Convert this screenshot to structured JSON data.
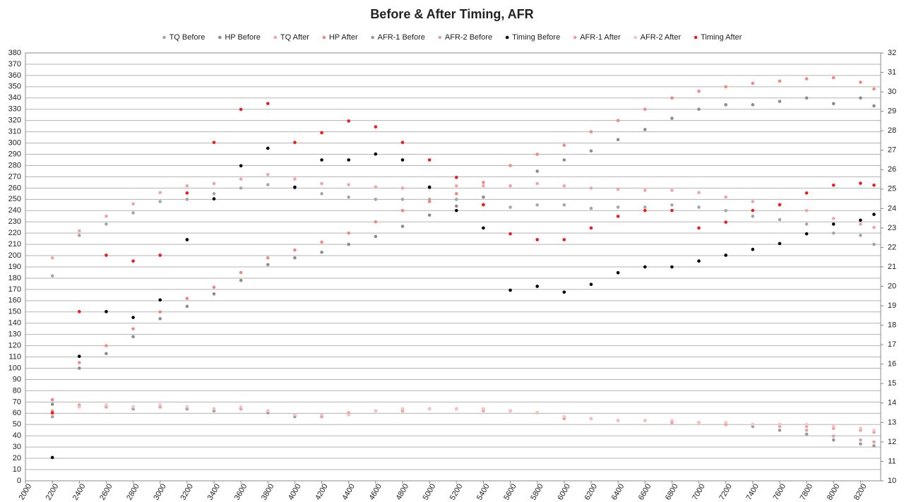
{
  "chart_data": {
    "type": "scatter",
    "title": "Before & After Timing, AFR",
    "x": [
      2200,
      2400,
      2600,
      2800,
      3000,
      3200,
      3400,
      3600,
      3800,
      4000,
      4200,
      4400,
      4600,
      4800,
      5000,
      5200,
      5400,
      5600,
      5800,
      6000,
      6200,
      6400,
      6600,
      6800,
      7000,
      7200,
      7400,
      7600,
      7800,
      8000,
      8200,
      8300
    ],
    "xlim": [
      2000,
      8350
    ],
    "xticks": [
      2000,
      2200,
      2400,
      2600,
      2800,
      3000,
      3200,
      3400,
      3600,
      3800,
      4000,
      4200,
      4400,
      4600,
      4800,
      5000,
      5200,
      5400,
      5600,
      5800,
      6000,
      6200,
      6400,
      6600,
      6800,
      7000,
      7200,
      7400,
      7600,
      7800,
      8000,
      8200
    ],
    "ylim": [
      0,
      380
    ],
    "yticks": [
      0,
      10,
      20,
      30,
      40,
      50,
      60,
      70,
      80,
      90,
      100,
      110,
      120,
      130,
      140,
      150,
      160,
      170,
      180,
      190,
      200,
      210,
      220,
      230,
      240,
      250,
      260,
      270,
      280,
      290,
      300,
      310,
      320,
      330,
      340,
      350,
      360,
      370,
      380
    ],
    "y2lim": [
      10,
      32
    ],
    "y2ticks": [
      10,
      11,
      12,
      13,
      14,
      15,
      16,
      17,
      18,
      19,
      20,
      21,
      22,
      23,
      24,
      25,
      26,
      27,
      28,
      29,
      30,
      31,
      32
    ],
    "grid": true,
    "series": [
      {
        "name": "TQ Before",
        "color": "#a6a6a6",
        "values": [
          182,
          218,
          228,
          238,
          248,
          250,
          255,
          260,
          263,
          260,
          255,
          252,
          250,
          250,
          250,
          250,
          245,
          243,
          245,
          245,
          242,
          243,
          243,
          245,
          243,
          240,
          235,
          232,
          228,
          220,
          218,
          210
        ]
      },
      {
        "name": "HP Before",
        "color": "#8c8c8c",
        "values": [
          68,
          100,
          113,
          128,
          144,
          155,
          166,
          178,
          192,
          198,
          203,
          210,
          217,
          226,
          236,
          244,
          252,
          262,
          275,
          285,
          293,
          303,
          312,
          322,
          330,
          334,
          334,
          337,
          340,
          335,
          340,
          333
        ]
      },
      {
        "name": "TQ After",
        "color": "#f4a3a3",
        "values": [
          198,
          222,
          235,
          246,
          256,
          262,
          264,
          268,
          272,
          268,
          264,
          263,
          261,
          260,
          260,
          262,
          262,
          262,
          264,
          262,
          260,
          259,
          258,
          258,
          256,
          252,
          248,
          245,
          240,
          233,
          228,
          225
        ]
      },
      {
        "name": "HP After",
        "color": "#f08888",
        "values": [
          72,
          105,
          120,
          135,
          150,
          162,
          172,
          185,
          198,
          205,
          212,
          220,
          230,
          240,
          248,
          255,
          265,
          280,
          290,
          298,
          310,
          320,
          330,
          340,
          346,
          350,
          353,
          355,
          357,
          358,
          354,
          348
        ]
      },
      {
        "name": "AFR-1 Before",
        "color": "#9a9a9a",
        "axis": "y2",
        "values": [
          13.3,
          13.8,
          13.8,
          13.7,
          13.8,
          13.7,
          13.6,
          13.7,
          13.5,
          13.3,
          13.3,
          13.4,
          13.6,
          13.6,
          13.7,
          13.7,
          13.7,
          13.6,
          13.5,
          13.2,
          13.2,
          13.1,
          13.1,
          13.0,
          13.0,
          12.9,
          12.8,
          12.6,
          12.4,
          12.1,
          11.9,
          11.8
        ]
      },
      {
        "name": "AFR-2 Before",
        "color": "#d9a6a6",
        "axis": "y2",
        "values": [
          13.5,
          13.9,
          13.8,
          13.8,
          13.9,
          13.8,
          13.7,
          13.7,
          13.6,
          13.4,
          13.3,
          13.4,
          13.6,
          13.7,
          13.7,
          13.7,
          13.7,
          13.6,
          13.5,
          13.2,
          13.2,
          13.1,
          13.1,
          13.0,
          13.0,
          12.9,
          12.9,
          12.8,
          12.6,
          12.3,
          12.1,
          12.0
        ]
      },
      {
        "name": "Timing Before",
        "color": "#000000",
        "axis": "y2",
        "values": [
          11.2,
          16.4,
          18.7,
          18.4,
          19.3,
          22.4,
          24.5,
          26.2,
          27.1,
          25.1,
          26.5,
          26.5,
          26.8,
          26.5,
          25.1,
          23.9,
          23.0,
          19.8,
          20.0,
          19.7,
          20.1,
          20.7,
          21.0,
          21.0,
          21.3,
          21.6,
          21.9,
          22.2,
          22.7,
          23.2,
          23.4,
          23.7
        ]
      },
      {
        "name": "AFR-1 After",
        "color": "#f29b9b",
        "axis": "y2",
        "values": [
          13.6,
          13.9,
          13.9,
          13.8,
          13.8,
          13.8,
          13.7,
          13.7,
          13.6,
          13.4,
          13.4,
          13.5,
          13.6,
          13.6,
          13.7,
          13.7,
          13.6,
          13.6,
          13.5,
          13.2,
          13.2,
          13.1,
          13.1,
          13.0,
          13.0,
          12.9,
          12.9,
          12.9,
          12.8,
          12.7,
          12.6,
          12.5
        ]
      },
      {
        "name": "AFR-2 After",
        "color": "#f7c1c1",
        "axis": "y2",
        "values": [
          13.4,
          13.8,
          13.9,
          13.8,
          13.9,
          13.8,
          13.7,
          13.8,
          13.6,
          13.4,
          13.4,
          13.4,
          13.6,
          13.7,
          13.7,
          13.7,
          13.7,
          13.6,
          13.5,
          13.3,
          13.2,
          13.1,
          13.1,
          13.1,
          13.0,
          13.0,
          12.9,
          12.9,
          12.9,
          12.8,
          12.7,
          12.6
        ]
      },
      {
        "name": "Timing After",
        "color": "#ee1c1c",
        "axis": "y2",
        "values": [
          13.5,
          18.7,
          21.6,
          21.3,
          21.6,
          24.8,
          27.4,
          29.1,
          29.4,
          27.4,
          27.9,
          28.5,
          28.2,
          27.4,
          26.5,
          25.6,
          24.2,
          22.7,
          22.4,
          22.4,
          23.0,
          23.6,
          23.9,
          23.9,
          23.0,
          23.3,
          23.9,
          24.2,
          24.8,
          25.2,
          25.3,
          25.2
        ]
      }
    ]
  }
}
